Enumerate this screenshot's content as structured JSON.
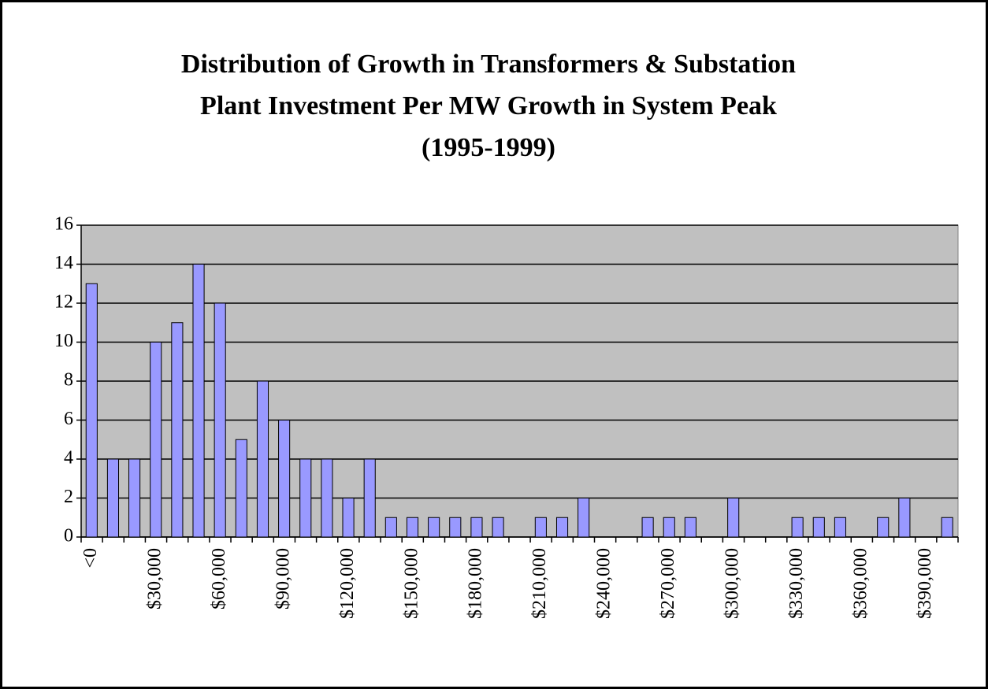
{
  "chart_data": {
    "type": "bar",
    "title": [
      "Distribution of Growth in Transformers & Substation",
      "Plant Investment Per MW Growth in System Peak",
      "(1995-1999)"
    ],
    "categories": [
      "<0",
      null,
      null,
      "$30,000",
      null,
      null,
      "$60,000",
      null,
      null,
      "$90,000",
      null,
      null,
      "$120,000",
      null,
      null,
      "$150,000",
      null,
      null,
      "$180,000",
      null,
      null,
      "$210,000",
      null,
      null,
      "$240,000",
      null,
      null,
      "$270,000",
      null,
      null,
      "$300,000",
      null,
      null,
      "$330,000",
      null,
      null,
      "$360,000",
      null,
      null,
      "$390,000",
      null
    ],
    "values": [
      13,
      4,
      4,
      10,
      11,
      14,
      12,
      5,
      8,
      6,
      4,
      4,
      2,
      4,
      1,
      1,
      1,
      1,
      1,
      1,
      0,
      1,
      1,
      2,
      0,
      0,
      1,
      1,
      1,
      0,
      2,
      0,
      0,
      1,
      1,
      1,
      0,
      1,
      2,
      0,
      1
    ],
    "color": "#9999ff",
    "plot_background": "#c0c0c0",
    "ylim": [
      0,
      16
    ],
    "yticks": [
      0,
      2,
      4,
      6,
      8,
      10,
      12,
      14,
      16
    ],
    "grid": true
  }
}
